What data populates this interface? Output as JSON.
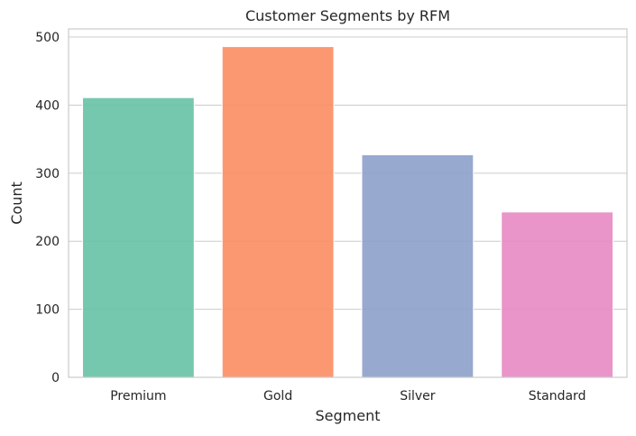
{
  "chart_data": {
    "type": "bar",
    "title": "Customer Segments by RFM",
    "xlabel": "Segment",
    "ylabel": "Count",
    "categories": [
      "Premium",
      "Gold",
      "Silver",
      "Standard"
    ],
    "values": [
      411,
      486,
      327,
      243
    ],
    "ylim": [
      0,
      512
    ],
    "yticks": [
      0,
      100,
      200,
      300,
      400,
      500
    ],
    "grid": true,
    "colors": [
      "#66c2a5",
      "#fc8d62",
      "#8da0cb",
      "#e78ac3"
    ],
    "bar_opacity": 0.9
  }
}
